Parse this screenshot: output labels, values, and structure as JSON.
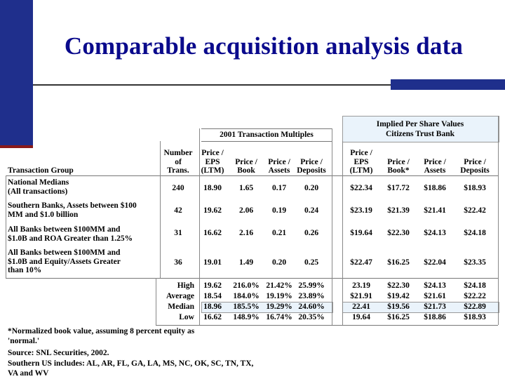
{
  "slide": {
    "title": "Comparable acquisition analysis data",
    "colors": {
      "title": "#0a0a8c",
      "accent": "#1f2f8c"
    }
  },
  "header": {
    "transaction_multiples": "2001 Transaction Multiples",
    "implied_line1": "Implied Per Share Values",
    "implied_line2": "Citizens Trust Bank",
    "group_label": "Transaction Group",
    "number_label": [
      "Number",
      "of",
      "Trans."
    ],
    "cols_multiples": [
      [
        "Price /",
        "EPS",
        "(LTM)"
      ],
      [
        "Price /",
        "Book"
      ],
      [
        "Price /",
        "Assets"
      ],
      [
        "Price /",
        "Deposits"
      ]
    ],
    "cols_implied": [
      [
        "Price /",
        "EPS",
        "(LTM)"
      ],
      [
        "Price /",
        "Book*"
      ],
      [
        "Price /",
        "Assets"
      ],
      [
        "Price /",
        "Deposits"
      ]
    ]
  },
  "rows": [
    {
      "group": [
        "National Medians",
        "(All transactions)"
      ],
      "number": "240",
      "multiples": [
        "18.90",
        "1.65",
        "0.17",
        "0.20"
      ],
      "implied": [
        "$22.34",
        "$17.72",
        "$18.86",
        "$18.93"
      ]
    },
    {
      "group": [
        "Southern Banks, Assets between $100",
        "MM and $1.0 billion"
      ],
      "number": "42",
      "multiples": [
        "19.62",
        "2.06",
        "0.19",
        "0.24"
      ],
      "implied": [
        "$23.19",
        "$21.39",
        "$21.41",
        "$22.42"
      ]
    },
    {
      "group": [
        "All Banks between $100MM and",
        "$1.0B and ROA Greater than 1.25%"
      ],
      "number": "31",
      "multiples": [
        "16.62",
        "2.16",
        "0.21",
        "0.26"
      ],
      "implied": [
        "$19.64",
        "$22.30",
        "$24.13",
        "$24.18"
      ]
    },
    {
      "group": [
        "All Banks between $100MM and",
        "$1.0B and Equity/Assets Greater",
        "than 10%"
      ],
      "number": "36",
      "multiples": [
        "19.01",
        "1.49",
        "0.20",
        "0.25"
      ],
      "implied": [
        "$22.47",
        "$16.25",
        "$22.04",
        "$23.35"
      ]
    }
  ],
  "stats": [
    {
      "label": "High",
      "multiples": [
        "19.62",
        "216.0%",
        "21.42%",
        "25.99%"
      ],
      "implied": [
        "23.19",
        "$22.30",
        "$24.13",
        "$24.18"
      ]
    },
    {
      "label": "Average",
      "multiples": [
        "18.54",
        "184.0%",
        "19.19%",
        "23.89%"
      ],
      "implied": [
        "$21.91",
        "$19.42",
        "$21.61",
        "$22.22"
      ]
    },
    {
      "label": "Median",
      "multiples": [
        "18.96",
        "185.5%",
        "19.29%",
        "24.60%"
      ],
      "implied": [
        "22.41",
        "$19.56",
        "$21.73",
        "$22.89"
      ]
    },
    {
      "label": "Low",
      "multiples": [
        "16.62",
        "148.9%",
        "16.74%",
        "20.35%"
      ],
      "implied": [
        "19.64",
        "$16.25",
        "$18.86",
        "$18.93"
      ]
    }
  ],
  "footnotes": [
    "*Normalized book value, assuming 8 percent equity as",
    "'normal.'",
    "Source: SNL Securities, 2002.",
    "Southern US includes: AL, AR, FL, GA, LA, MS, NC, OK, SC, TN, TX,",
    "VA and WV"
  ]
}
